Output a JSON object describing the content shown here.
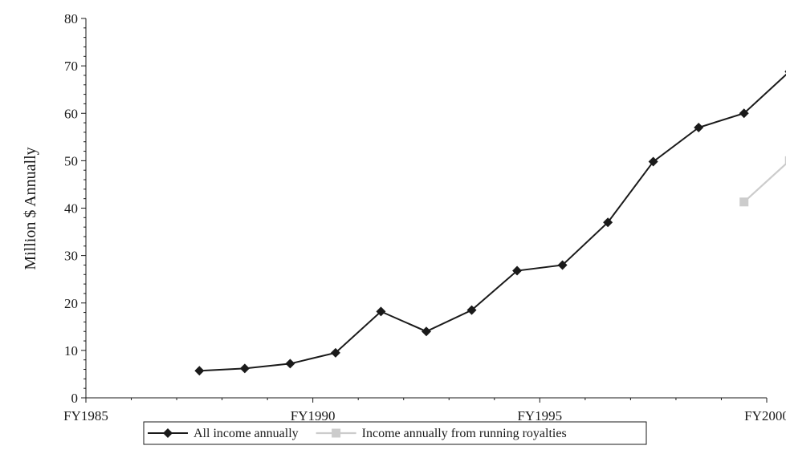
{
  "chart_data": {
    "type": "line",
    "title": "",
    "xlabel": "",
    "ylabel": "Million $ Annually",
    "ylim": [
      0,
      80
    ],
    "xlim": [
      1985,
      2000
    ],
    "y_ticks": [
      0,
      10,
      20,
      30,
      40,
      50,
      60,
      70,
      80
    ],
    "x_ticks": [
      {
        "value": 1985,
        "label": "FY1985"
      },
      {
        "value": 1990,
        "label": "FY1990"
      },
      {
        "value": 1995,
        "label": "FY1995"
      },
      {
        "value": 2000,
        "label": "FY2000"
      }
    ],
    "x_minor_tick_step": 1,
    "y_minor_tick_step": 2,
    "grid": false,
    "legend_position": "bottom-center",
    "series": [
      {
        "name": "All income annually",
        "color": "#1a1a1a",
        "marker": "diamond",
        "x": [
          1987.5,
          1988.5,
          1989.5,
          1990.5,
          1991.5,
          1992.5,
          1993.5,
          1994.5,
          1995.5,
          1996.5,
          1997.5,
          1998.5,
          1999.5,
          2000.5
        ],
        "values": [
          5.7,
          6.2,
          7.2,
          9.5,
          18.2,
          14.0,
          18.5,
          26.8,
          28.0,
          37.0,
          49.8,
          57.0,
          60.0,
          68.8
        ]
      },
      {
        "name": "Income annually from running royalties",
        "color": "#cccccc",
        "marker": "square",
        "x": [
          1999.5,
          2000.5
        ],
        "values": [
          41.3,
          50.0
        ]
      }
    ]
  }
}
